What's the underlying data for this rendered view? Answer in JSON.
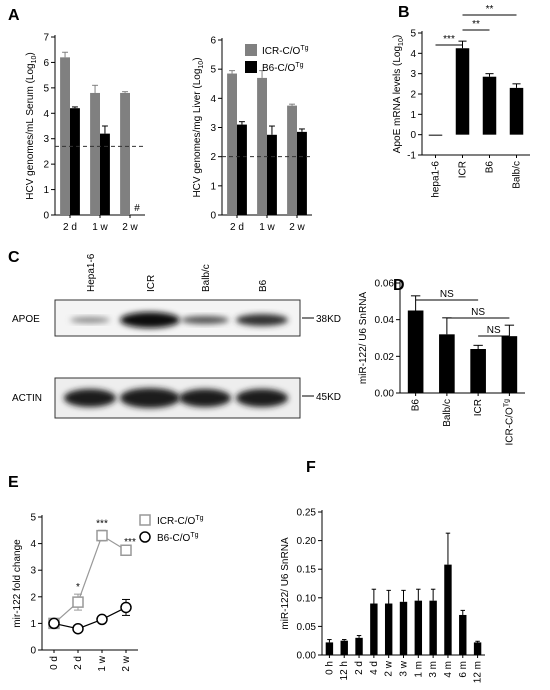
{
  "panel_labels": [
    "A",
    "B",
    "C",
    "D",
    "E",
    "F"
  ],
  "blot": {
    "lanes": [
      "Hepa1-6",
      "ICR",
      "Balb/c",
      "B6"
    ],
    "rows": [
      "APOE",
      "ACTIN"
    ],
    "markers": [
      "38KD",
      "45KD"
    ]
  },
  "chart_data": [
    {
      "type": "bar",
      "ylabel": [
        "HCV genomes/mL Serum (Log",
        "10",
        ")"
      ],
      "categories": [
        "2 d",
        "1 w",
        "2 w"
      ],
      "series": [
        {
          "name": [
            "ICR-C/O",
            "Tg"
          ],
          "color": "#808080",
          "values": [
            6.2,
            4.8,
            4.8
          ],
          "errors": [
            0.2,
            0.3,
            0.05
          ]
        },
        {
          "name": [
            "B6-C/O",
            "Tg"
          ],
          "color": "#000000",
          "values": [
            4.2,
            3.2,
            null
          ],
          "errors": [
            0.05,
            0.3,
            null
          ]
        }
      ],
      "ylim": [
        0,
        7
      ],
      "yticks": [
        0,
        1,
        2,
        3,
        4,
        5,
        6,
        7
      ],
      "reference_line": 2.7,
      "annotations": [
        "#"
      ],
      "legend": false
    },
    {
      "type": "bar",
      "ylabel": [
        "HCV genomes/mg Liver (Log",
        "10",
        ")"
      ],
      "categories": [
        "2 d",
        "1 w",
        "2 w"
      ],
      "series": [
        {
          "name": [
            "ICR-C/O",
            "Tg"
          ],
          "color": "#808080",
          "values": [
            4.85,
            4.7,
            3.75
          ],
          "errors": [
            0.1,
            0.25,
            0.05
          ]
        },
        {
          "name": [
            "B6-C/O",
            "Tg"
          ],
          "color": "#000000",
          "values": [
            3.1,
            2.75,
            2.85
          ],
          "errors": [
            0.1,
            0.3,
            0.1
          ]
        }
      ],
      "ylim": [
        0,
        6
      ],
      "yticks": [
        0,
        1,
        2,
        3,
        4,
        5,
        6
      ],
      "reference_line": 2.0,
      "legend": true
    },
    {
      "type": "bar",
      "ylabel": [
        "ApoE mRNA levels (Log",
        "10",
        ")"
      ],
      "categories": [
        "hepa1-6",
        "ICR",
        "B6",
        "Balb/c"
      ],
      "values": [
        0,
        4.25,
        2.85,
        2.3
      ],
      "errors": [
        0,
        0.35,
        0.15,
        0.2
      ],
      "color": "#000000",
      "ylim": [
        -1,
        5
      ],
      "yticks": [
        -1,
        0,
        1,
        2,
        3,
        4,
        5
      ],
      "annotations": [
        "**",
        "**",
        "***"
      ]
    },
    {
      "type": "bar",
      "ylabel": [
        "miR-122/ U6 SnRNA"
      ],
      "categories": [
        "B6",
        "Balb/c",
        "ICR",
        "ICR-C/O"
      ],
      "category_superscripts": [
        null,
        null,
        null,
        "Tg"
      ],
      "values": [
        0.045,
        0.032,
        0.024,
        0.031
      ],
      "errors": [
        0.008,
        0.009,
        0.002,
        0.006
      ],
      "color": "#000000",
      "ylim": [
        0,
        0.06
      ],
      "yticks": [
        {
          "value": 0,
          "label": "0.00"
        },
        {
          "value": 0.02,
          "label": "0.02"
        },
        {
          "value": 0.04,
          "label": "0.04"
        },
        {
          "value": 0.06,
          "label": "0.06"
        }
      ],
      "annotations": [
        "NS",
        "NS",
        "NS"
      ]
    },
    {
      "type": "line",
      "ylabel": [
        "mir-122 fold change"
      ],
      "categories": [
        "0 d",
        "2 d",
        "1 w",
        "2 w"
      ],
      "series": [
        {
          "name": [
            "ICR-C/O",
            "Tg"
          ],
          "color": "#999999",
          "marker": "square",
          "values": [
            1.0,
            1.8,
            4.3,
            3.75
          ],
          "errors": [
            0.1,
            0.3,
            0.2,
            0.05
          ]
        },
        {
          "name": [
            "B6-C/O",
            "Tg"
          ],
          "color": "#000000",
          "marker": "circle",
          "values": [
            1.0,
            0.8,
            1.15,
            1.6
          ],
          "errors": [
            0.1,
            0.05,
            0.05,
            0.3
          ]
        }
      ],
      "ylim": [
        0,
        5
      ],
      "yticks": [
        0,
        1,
        2,
        3,
        4,
        5
      ],
      "annotations": [
        "*",
        "***",
        "***"
      ],
      "legend": true
    },
    {
      "type": "bar",
      "ylabel": [
        "miR-122/ U6 SnRNA"
      ],
      "categories": [
        "0 h",
        "12 h",
        "2 d",
        "4 d",
        "2 w",
        "3 w",
        "1 m",
        "3 m",
        "4 m",
        "6 m",
        "12 m"
      ],
      "values": [
        0.022,
        0.025,
        0.03,
        0.09,
        0.09,
        0.093,
        0.095,
        0.095,
        0.158,
        0.07,
        0.022
      ],
      "errors": [
        0.005,
        0.002,
        0.004,
        0.025,
        0.023,
        0.02,
        0.02,
        0.02,
        0.055,
        0.008,
        0.002
      ],
      "color": "#000000",
      "ylim": [
        0,
        0.25
      ],
      "yticks": [
        {
          "value": 0,
          "label": "0.00"
        },
        {
          "value": 0.05,
          "label": "0.05"
        },
        {
          "value": 0.1,
          "label": "0.10"
        },
        {
          "value": 0.15,
          "label": "0.15"
        },
        {
          "value": 0.2,
          "label": "0.20"
        },
        {
          "value": 0.25,
          "label": "0.25"
        }
      ]
    }
  ]
}
